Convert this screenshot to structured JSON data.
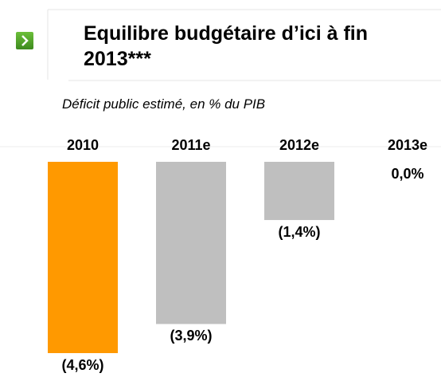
{
  "chart_data": {
    "type": "bar",
    "title": "Equilibre budgétaire d’ici à fin 2013***",
    "subtitle": "Déficit public estimé, en % du PIB",
    "categories": [
      "2010",
      "2011e",
      "2012e",
      "2013e"
    ],
    "values": [
      -4.6,
      -3.9,
      -1.4,
      0.0
    ],
    "value_labels": [
      "(4,6%)",
      "(3,9%)",
      "(1,4%)",
      "0,0%"
    ],
    "colors": [
      "#ff9900",
      "#bfbfbf",
      "#bfbfbf",
      "#bfbfbf"
    ]
  }
}
